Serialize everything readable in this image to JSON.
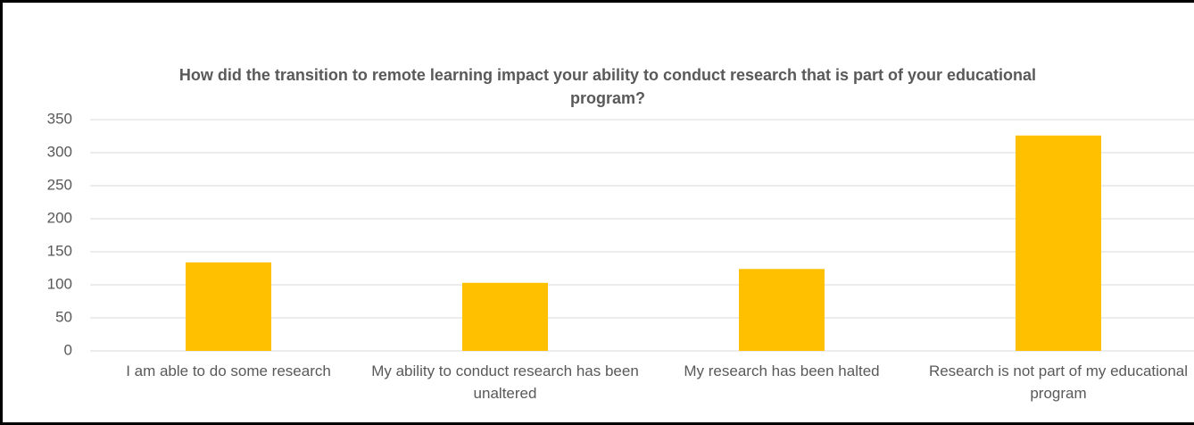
{
  "chart_data": {
    "type": "bar",
    "title": "How did the transition to remote learning impact your ability to conduct research that is part of your educational program?",
    "categories": [
      "I am able to do some research",
      "My ability to conduct research has been unaltered",
      "My research has been halted",
      "Research is not part of my educational program"
    ],
    "values": [
      134,
      103,
      124,
      326
    ],
    "color": "#ffc000",
    "ylim": [
      0,
      350
    ],
    "yticks": [
      0,
      50,
      100,
      150,
      200,
      250,
      300,
      350
    ],
    "grid": true
  }
}
